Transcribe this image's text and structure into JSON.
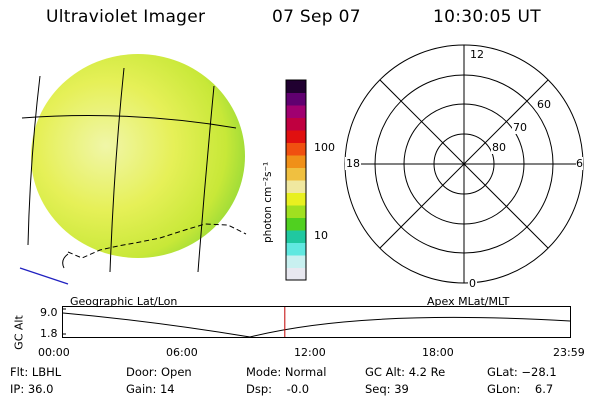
{
  "header": {
    "instrument": "Ultraviolet Imager",
    "date": "07 Sep 07",
    "time": "10:30:05 UT"
  },
  "colorbar": {
    "unit_label": "photon cm⁻²s⁻¹",
    "ticks": [
      "100",
      "10"
    ],
    "colors": [
      "#e8e8f0",
      "#c8f0f0",
      "#60e8e0",
      "#20c8a0",
      "#50d020",
      "#a0e020",
      "#e8f020",
      "#f0e8a0",
      "#f0c040",
      "#f09018",
      "#f05010",
      "#e01010",
      "#c00040",
      "#a00070",
      "#600070",
      "#200030"
    ]
  },
  "left_panel": {
    "caption": "Geographic Lat/Lon"
  },
  "right_panel": {
    "caption": "Apex MLat/MLT",
    "mlt_labels": [
      "12",
      "18",
      "6",
      "0"
    ],
    "mlat_labels": [
      "60",
      "70",
      "80"
    ]
  },
  "timeline": {
    "y_axis_label": "GC Alt",
    "y_ticks": [
      "9.0",
      "1.8"
    ],
    "x_ticks": [
      "00:00",
      "06:00",
      "12:00",
      "18:00",
      "23:59"
    ],
    "current_time_hours": 10.5
  },
  "status": {
    "filter": "Flt: LBHL",
    "ip": "IP: 36.0",
    "door": "Door: Open",
    "gain": "Gain: 14",
    "mode": "Mode: Normal",
    "dsp": "Dsp:    -0.0",
    "gc_alt": "GC Alt: 4.2 Re",
    "seq": "Seq: 39",
    "glat": "GLat: −28.1",
    "glon": "GLon:    6.7"
  }
}
